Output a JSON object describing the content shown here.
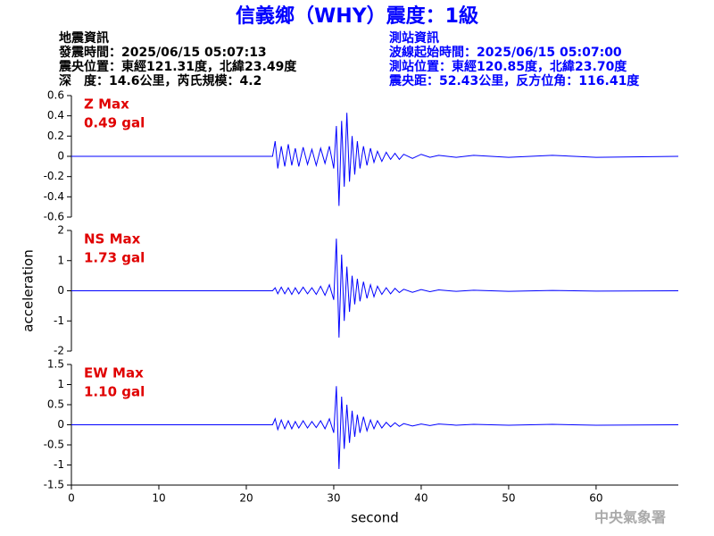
{
  "header": {
    "title": "信義鄉（WHY）震度：1級",
    "left_info": [
      "地震資訊",
      "發震時間：2025/06/15 05:07:13",
      "震央位置：東經121.31度，北緯23.49度",
      "深　度：14.6公里，芮氏規模：4.2"
    ],
    "right_info": [
      "測站資訊",
      "波線起始時間：2025/06/15 05:07:00",
      "測站位置：東經120.85度，北緯23.70度",
      "震央距：52.43公里，反方位角：116.41度"
    ]
  },
  "chart_data": [
    {
      "type": "line",
      "color": "#0000ff",
      "annotations": [
        "Z Max",
        "0.49 gal"
      ],
      "xlim": [
        0,
        69.4
      ],
      "ylim": [
        -0.6,
        0.6
      ],
      "yticks": [
        0.6,
        0.4,
        0.2,
        0,
        -0.2,
        -0.4,
        -0.6
      ],
      "x": [
        0,
        23.0,
        23.3,
        23.6,
        24.0,
        24.4,
        24.8,
        25.2,
        25.6,
        26.0,
        26.5,
        27.0,
        27.5,
        28.0,
        28.5,
        29.0,
        29.5,
        30.0,
        30.3,
        30.6,
        30.9,
        31.2,
        31.5,
        31.8,
        32.1,
        32.4,
        32.7,
        33.0,
        33.4,
        33.8,
        34.2,
        34.6,
        35.0,
        35.5,
        36.0,
        36.5,
        37.0,
        37.5,
        38.0,
        39.0,
        40.0,
        41.0,
        42.0,
        44.0,
        46.0,
        50.0,
        55.0,
        60.0,
        69.4
      ],
      "values": [
        0,
        0,
        0.15,
        -0.12,
        0.1,
        -0.1,
        0.12,
        -0.09,
        0.08,
        -0.1,
        0.09,
        -0.08,
        0.07,
        -0.09,
        0.08,
        -0.07,
        0.1,
        -0.12,
        0.3,
        -0.49,
        0.35,
        -0.3,
        0.43,
        -0.25,
        0.2,
        -0.18,
        0.15,
        -0.12,
        0.1,
        -0.09,
        0.08,
        -0.06,
        0.05,
        -0.05,
        0.04,
        -0.03,
        0.03,
        -0.03,
        0.02,
        -0.02,
        0.02,
        -0.01,
        0.01,
        -0.01,
        0.01,
        -0.01,
        0.01,
        -0.01,
        0
      ]
    },
    {
      "type": "line",
      "color": "#0000ff",
      "annotations": [
        "NS Max",
        "1.73 gal"
      ],
      "y_label": "acceleration",
      "xlim": [
        0,
        69.4
      ],
      "ylim": [
        -2,
        2
      ],
      "yticks": [
        2,
        1,
        0,
        -1,
        -2
      ],
      "x": [
        0,
        23.0,
        23.3,
        23.6,
        24.0,
        24.4,
        24.8,
        25.2,
        25.6,
        26.0,
        26.5,
        27.0,
        27.5,
        28.0,
        28.5,
        29.0,
        29.5,
        30.0,
        30.3,
        30.6,
        30.9,
        31.2,
        31.5,
        31.8,
        32.1,
        32.4,
        32.7,
        33.0,
        33.4,
        33.8,
        34.2,
        34.6,
        35.0,
        35.5,
        36.0,
        36.5,
        37.0,
        37.5,
        38.0,
        39.0,
        40.0,
        41.0,
        42.0,
        44.0,
        46.0,
        50.0,
        55.0,
        60.0,
        69.4
      ],
      "values": [
        0,
        0,
        0.1,
        -0.1,
        0.12,
        -0.1,
        0.1,
        -0.12,
        0.1,
        -0.1,
        0.12,
        -0.1,
        0.1,
        -0.12,
        0.15,
        -0.15,
        0.2,
        -0.3,
        1.73,
        -1.55,
        1.2,
        -1.0,
        0.8,
        -0.7,
        0.5,
        -0.45,
        0.4,
        -0.35,
        0.3,
        -0.25,
        0.2,
        -0.2,
        0.15,
        -0.12,
        0.1,
        -0.1,
        0.08,
        -0.06,
        0.05,
        -0.05,
        0.04,
        -0.03,
        0.03,
        -0.02,
        0.02,
        -0.02,
        0.01,
        -0.01,
        0
      ]
    },
    {
      "type": "line",
      "color": "#0000ff",
      "annotations": [
        "EW Max",
        "1.10 gal"
      ],
      "xlim": [
        0,
        69.4
      ],
      "ylim": [
        -1.5,
        1.5
      ],
      "yticks": [
        1.5,
        1,
        0.5,
        0,
        -0.5,
        -1,
        -1.5
      ],
      "xticks": [
        0,
        10,
        20,
        30,
        40,
        50,
        60
      ],
      "x_label": "second",
      "x": [
        0,
        23.0,
        23.3,
        23.6,
        24.0,
        24.4,
        24.8,
        25.2,
        25.6,
        26.0,
        26.5,
        27.0,
        27.5,
        28.0,
        28.5,
        29.0,
        29.5,
        30.0,
        30.3,
        30.6,
        30.9,
        31.2,
        31.5,
        31.8,
        32.1,
        32.4,
        32.7,
        33.0,
        33.4,
        33.8,
        34.2,
        34.6,
        35.0,
        35.5,
        36.0,
        36.5,
        37.0,
        37.5,
        38.0,
        39.0,
        40.0,
        41.0,
        42.0,
        44.0,
        46.0,
        50.0,
        55.0,
        60.0,
        69.4
      ],
      "values": [
        0,
        0,
        0.15,
        -0.12,
        0.12,
        -0.1,
        0.1,
        -0.1,
        0.08,
        -0.08,
        0.1,
        -0.08,
        0.08,
        -0.07,
        0.1,
        -0.1,
        0.15,
        -0.2,
        0.96,
        -1.1,
        0.7,
        -0.6,
        0.5,
        -0.45,
        0.35,
        -0.3,
        0.25,
        -0.2,
        0.2,
        -0.15,
        0.12,
        -0.1,
        0.1,
        -0.08,
        0.06,
        -0.05,
        0.05,
        -0.04,
        0.03,
        -0.03,
        0.02,
        -0.02,
        0.02,
        -0.01,
        0.01,
        -0.01,
        0.01,
        -0.01,
        0
      ]
    }
  ],
  "footer": {
    "watermark": "中央氣象署"
  }
}
